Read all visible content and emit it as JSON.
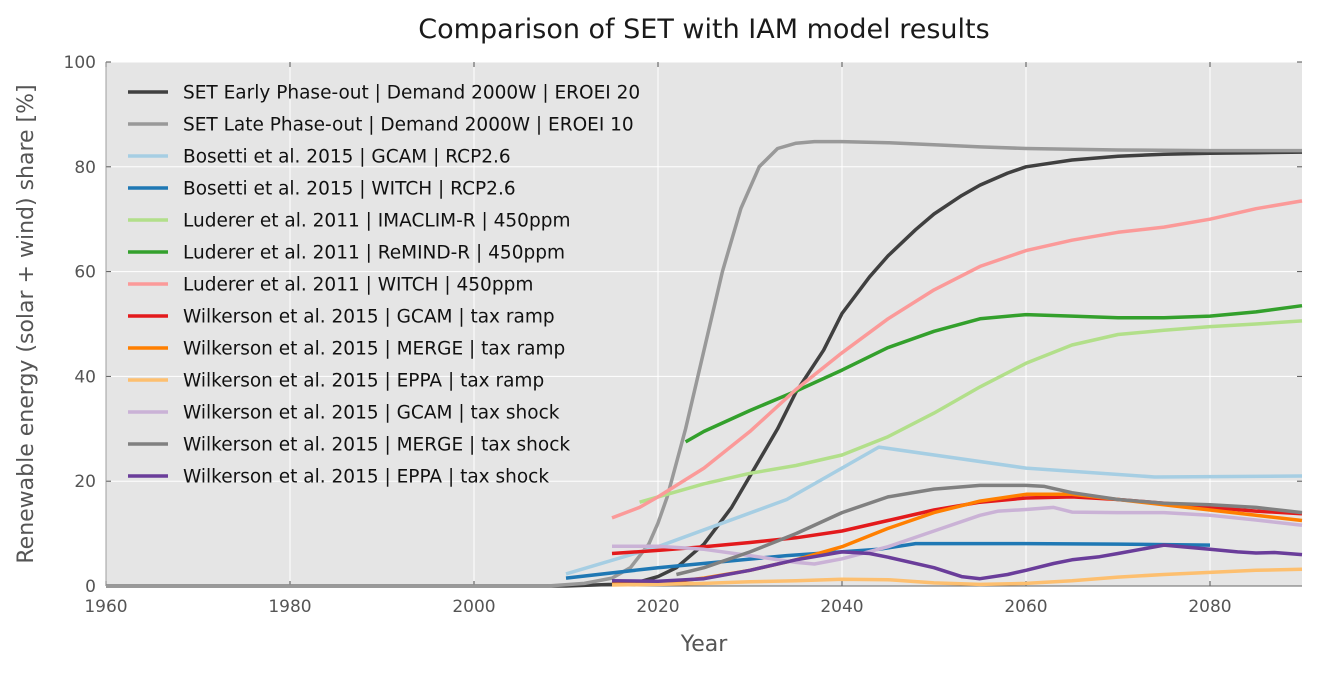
{
  "chart_data": {
    "type": "line",
    "title": "Comparison of SET with IAM model results",
    "xlabel": "Year",
    "ylabel": "Renewable energy (solar + wind) share [%]",
    "xlim": [
      1960,
      2090
    ],
    "ylim": [
      0,
      100
    ],
    "xticks": [
      1960,
      1980,
      2000,
      2020,
      2040,
      2060,
      2080
    ],
    "yticks": [
      0,
      20,
      40,
      60,
      80,
      100
    ],
    "grid": true,
    "legend_position": "upper-left",
    "background": "#e5e5e5",
    "series": [
      {
        "name": "SET Early Phase-out | Demand 2000W | EROEI 20",
        "color": "#404040",
        "x": [
          1960,
          2000,
          2010,
          2015,
          2018,
          2020,
          2022,
          2025,
          2028,
          2030,
          2033,
          2035,
          2038,
          2040,
          2043,
          2045,
          2048,
          2050,
          2053,
          2055,
          2058,
          2060,
          2065,
          2070,
          2075,
          2080,
          2085,
          2090
        ],
        "y": [
          0,
          0,
          0,
          0.3,
          0.8,
          1.8,
          3.5,
          8,
          15,
          21,
          30,
          37,
          45,
          52,
          59,
          63,
          68,
          71,
          74.5,
          76.5,
          78.8,
          80,
          81.3,
          82,
          82.4,
          82.6,
          82.7,
          82.8
        ]
      },
      {
        "name": "SET Late Phase-out | Demand 2000W | EROEI 10",
        "color": "#999999",
        "x": [
          1960,
          2000,
          2008,
          2012,
          2015,
          2017,
          2019,
          2020,
          2021,
          2023,
          2025,
          2027,
          2029,
          2031,
          2033,
          2035,
          2037,
          2039,
          2040,
          2045,
          2050,
          2055,
          2060,
          2070,
          2080,
          2090
        ],
        "y": [
          0,
          0,
          0,
          0.5,
          1.5,
          3.5,
          8,
          12,
          17,
          30,
          45,
          60,
          72,
          80,
          83.5,
          84.5,
          84.8,
          84.8,
          84.8,
          84.6,
          84.2,
          83.8,
          83.5,
          83.2,
          83.1,
          83.1
        ]
      },
      {
        "name": "Bosetti et al. 2015 | GCAM | RCP2.6",
        "color": "#a6cee3",
        "x": [
          2010,
          2020,
          2034,
          2044,
          2060,
          2074,
          2090
        ],
        "y": [
          2.3,
          7.5,
          16.5,
          26.5,
          22.5,
          20.8,
          21
        ]
      },
      {
        "name": "Bosetti et al. 2015 | WITCH | RCP2.6",
        "color": "#1f78b4",
        "x": [
          2010,
          2020,
          2034,
          2044,
          2048,
          2060,
          2070,
          2080
        ],
        "y": [
          1.5,
          3.5,
          5.8,
          7,
          8.1,
          8.1,
          8,
          7.8
        ]
      },
      {
        "name": "Luderer et al. 2011 | IMACLIM-R | 450ppm",
        "color": "#b2df8a",
        "x": [
          2018,
          2020,
          2025,
          2030,
          2035,
          2040,
          2045,
          2050,
          2055,
          2060,
          2065,
          2070,
          2075,
          2080,
          2085,
          2090
        ],
        "y": [
          16,
          17,
          19.5,
          21.5,
          23,
          25,
          28.5,
          33,
          38,
          42.5,
          46,
          48,
          48.8,
          49.5,
          50,
          50.6
        ]
      },
      {
        "name": "Luderer et al. 2011 | ReMIND-R | 450ppm",
        "color": "#33a02c",
        "x": [
          2023,
          2025,
          2030,
          2035,
          2040,
          2045,
          2050,
          2055,
          2060,
          2065,
          2070,
          2075,
          2080,
          2085,
          2090
        ],
        "y": [
          27.5,
          29.5,
          33.5,
          37.2,
          41.2,
          45.5,
          48.6,
          51,
          51.8,
          51.5,
          51.2,
          51.2,
          51.5,
          52.3,
          53.5
        ]
      },
      {
        "name": "Luderer et al. 2011 | WITCH | 450ppm",
        "color": "#fb9a99",
        "x": [
          2015,
          2018,
          2020,
          2025,
          2030,
          2035,
          2040,
          2045,
          2050,
          2055,
          2060,
          2065,
          2070,
          2075,
          2080,
          2085,
          2090
        ],
        "y": [
          13,
          15,
          17,
          22.5,
          29.5,
          37.5,
          44.5,
          51,
          56.5,
          61,
          64,
          66,
          67.5,
          68.5,
          70,
          72,
          73.5
        ]
      },
      {
        "name": "Wilkerson et al. 2015 | GCAM | tax ramp",
        "color": "#e31a1c",
        "x": [
          2015,
          2020,
          2025,
          2030,
          2035,
          2040,
          2045,
          2050,
          2055,
          2060,
          2065,
          2070,
          2075,
          2080,
          2085,
          2090
        ],
        "y": [
          6.2,
          6.8,
          7.5,
          8.3,
          9.2,
          10.5,
          12.5,
          14.5,
          16,
          16.8,
          17,
          16.5,
          15.8,
          15,
          14.3,
          13.8
        ]
      },
      {
        "name": "Wilkerson et al. 2015 | MERGE | tax ramp",
        "color": "#ff7f00",
        "x": [
          2015,
          2020,
          2025,
          2030,
          2035,
          2040,
          2045,
          2050,
          2055,
          2060,
          2065,
          2070,
          2075,
          2080,
          2085,
          2090
        ],
        "y": [
          0.3,
          0.5,
          1.5,
          3,
          5,
          7.5,
          11,
          14,
          16.2,
          17.5,
          17.5,
          16.5,
          15.5,
          14.5,
          13.5,
          12.5
        ]
      },
      {
        "name": "Wilkerson et al. 2015 | EPPA | tax ramp",
        "color": "#fdbf6f",
        "x": [
          2015,
          2020,
          2025,
          2030,
          2035,
          2040,
          2045,
          2050,
          2055,
          2060,
          2065,
          2070,
          2075,
          2080,
          2085,
          2090
        ],
        "y": [
          0.2,
          0.3,
          0.5,
          0.8,
          1,
          1.3,
          1.2,
          0.6,
          0.3,
          0.5,
          1,
          1.7,
          2.2,
          2.6,
          3,
          3.2
        ]
      },
      {
        "name": "Wilkerson et al. 2015 | GCAM | tax shock",
        "color": "#cab2d6",
        "x": [
          2015,
          2020,
          2025,
          2030,
          2035,
          2037,
          2040,
          2045,
          2050,
          2055,
          2057,
          2060,
          2063,
          2065,
          2070,
          2075,
          2080,
          2085,
          2090
        ],
        "y": [
          7.6,
          7.6,
          7,
          5.8,
          4.5,
          4.2,
          5.2,
          7.5,
          10.5,
          13.5,
          14.3,
          14.6,
          15,
          14.1,
          14,
          14,
          13.5,
          12.6,
          11.6
        ]
      },
      {
        "name": "Wilkerson et al. 2015 | MERGE | tax shock",
        "color": "#808080",
        "x": [
          2022,
          2025,
          2030,
          2035,
          2040,
          2045,
          2050,
          2055,
          2060,
          2062,
          2065,
          2070,
          2075,
          2080,
          2085,
          2090
        ],
        "y": [
          2.2,
          3.5,
          6.5,
          10,
          14,
          17,
          18.5,
          19.2,
          19.2,
          19,
          17.8,
          16.5,
          15.8,
          15.5,
          15,
          14
        ]
      },
      {
        "name": "Wilkerson et al. 2015 | EPPA | tax shock",
        "color": "#6a3d9a",
        "x": [
          2015,
          2020,
          2025,
          2030,
          2035,
          2040,
          2043,
          2045,
          2050,
          2053,
          2055,
          2058,
          2060,
          2063,
          2065,
          2068,
          2070,
          2075,
          2080,
          2083,
          2085,
          2087,
          2090
        ],
        "y": [
          1,
          0.9,
          1.4,
          3,
          5,
          6.5,
          6.2,
          5.5,
          3.5,
          1.8,
          1.4,
          2.2,
          3,
          4.3,
          5,
          5.6,
          6.2,
          7.8,
          7,
          6.5,
          6.3,
          6.4,
          6
        ]
      }
    ]
  }
}
